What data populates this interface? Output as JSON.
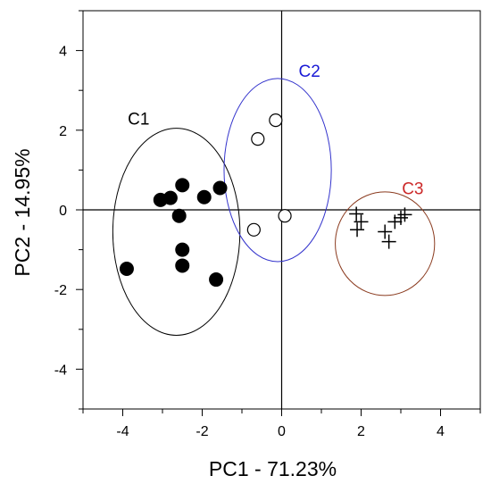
{
  "chart_data": {
    "type": "scatter",
    "title": "",
    "xlabel": "PC1 - 71.23%",
    "ylabel": "PC2 - 14.95%",
    "xlim": [
      -5,
      5
    ],
    "ylim": [
      -5,
      5
    ],
    "xticks": [
      -4,
      -2,
      0,
      2,
      4
    ],
    "xtick_labels": [
      "-4",
      "-2",
      "0",
      "2",
      "4"
    ],
    "yticks": [
      -4,
      -2,
      0,
      2,
      4
    ],
    "ytick_labels": [
      "-4",
      "-2",
      "0",
      "2",
      "4"
    ],
    "grid": false,
    "series": [
      {
        "marker": "filled-circle",
        "color": "#000000",
        "points": [
          [
            -3.05,
            0.25
          ],
          [
            -2.8,
            0.3
          ],
          [
            -2.5,
            0.62
          ],
          [
            -1.95,
            0.32
          ],
          [
            -1.55,
            0.55
          ],
          [
            -2.58,
            -0.15
          ],
          [
            -2.5,
            -1.0
          ],
          [
            -2.5,
            -1.4
          ],
          [
            -3.9,
            -1.48
          ],
          [
            -1.65,
            -1.75
          ]
        ]
      },
      {
        "marker": "open-circle",
        "color": "#000000",
        "points": [
          [
            -0.15,
            2.25
          ],
          [
            -0.6,
            1.78
          ],
          [
            0.08,
            -0.15
          ],
          [
            -0.7,
            -0.5
          ]
        ]
      },
      {
        "marker": "plus",
        "color": "#000000",
        "points": [
          [
            1.88,
            -0.1
          ],
          [
            2.0,
            -0.3
          ],
          [
            1.9,
            -0.5
          ],
          [
            2.85,
            -0.3
          ],
          [
            2.6,
            -0.55
          ],
          [
            2.7,
            -0.8
          ],
          [
            3.1,
            -0.12
          ],
          [
            3.0,
            -0.2
          ]
        ]
      }
    ],
    "clusters": [
      {
        "label": "C1",
        "color": "#000000",
        "center": [
          -2.65,
          -0.55
        ],
        "radius": [
          1.6,
          2.6
        ],
        "label_at": [
          -3.6,
          2.3
        ]
      },
      {
        "label": "C2",
        "color": "#1a1ad6",
        "center": [
          -0.1,
          1.0
        ],
        "radius": [
          1.35,
          2.3
        ],
        "label_at": [
          0.7,
          3.5
        ]
      },
      {
        "label": "C3",
        "color": "#cc2a2a",
        "center": [
          2.6,
          -0.85
        ],
        "radius": [
          1.25,
          1.3
        ],
        "label_at": [
          3.3,
          0.55
        ]
      }
    ],
    "cluster_edge_colors": [
      "#000000",
      "#3333cc",
      "#8a3a1e"
    ],
    "axis_color": "#000000"
  }
}
